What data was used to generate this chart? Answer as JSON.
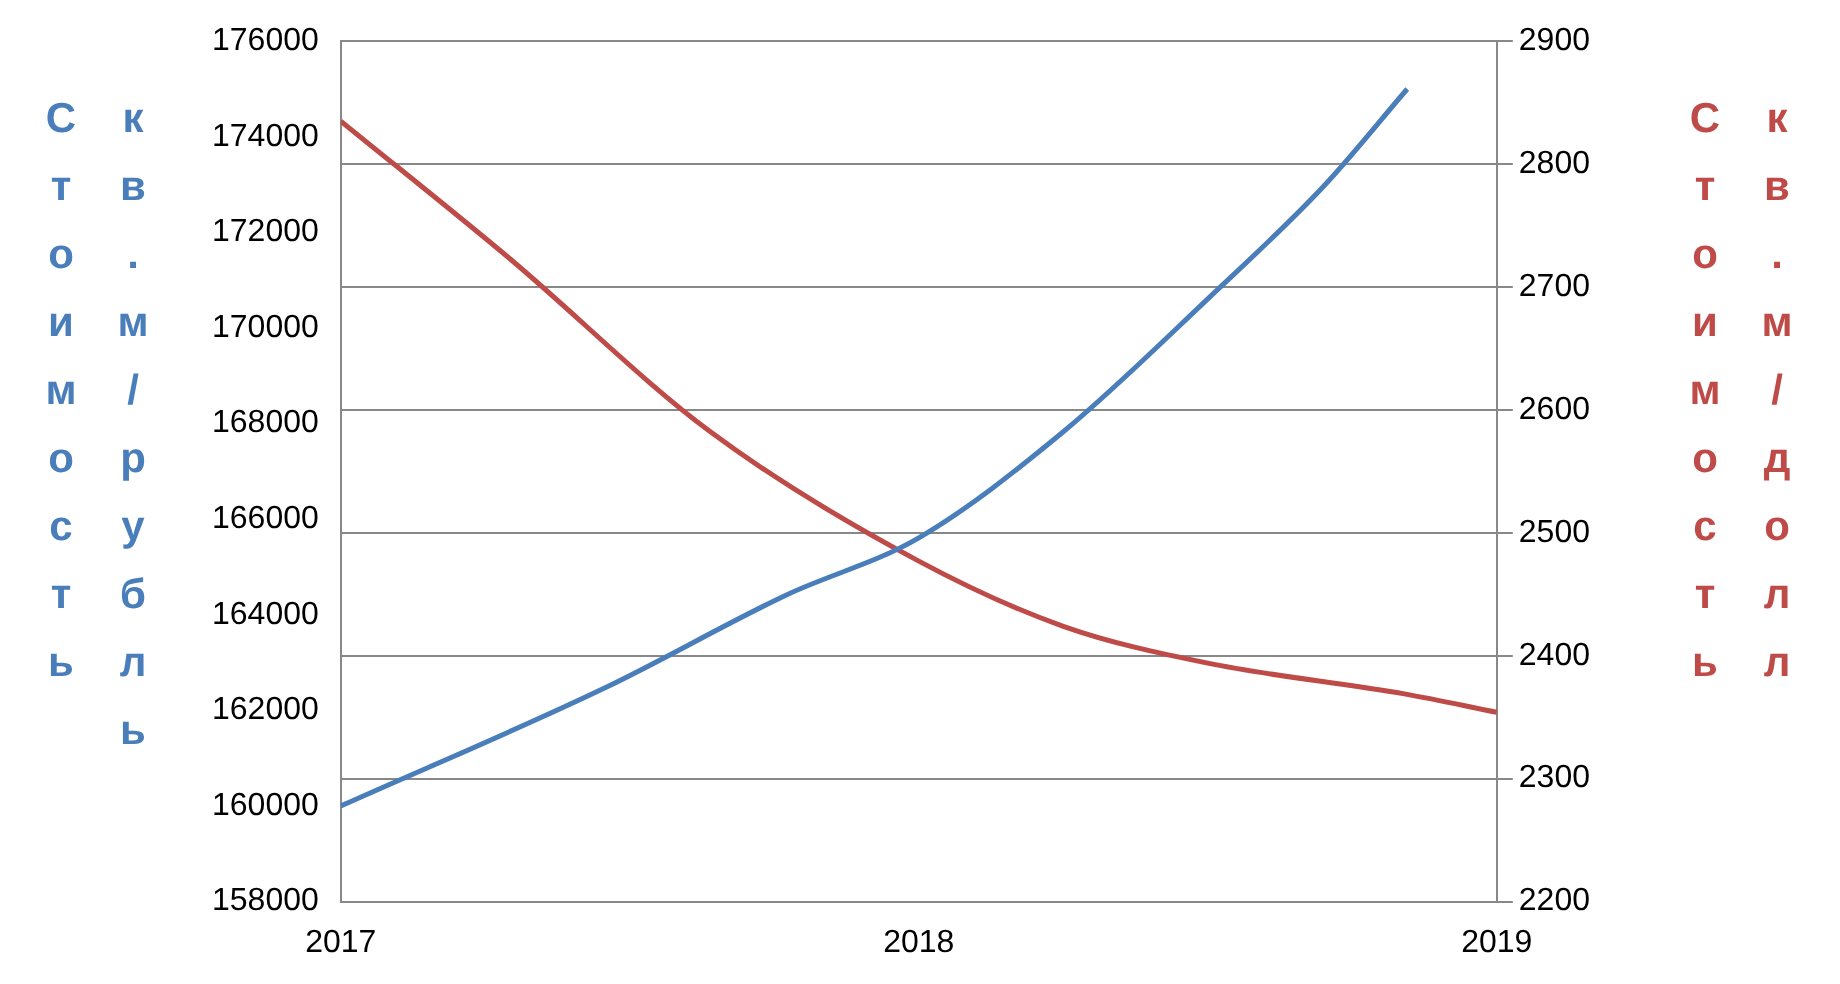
{
  "chart_data": {
    "type": "line",
    "ylabel": "Стоимость кв.м/рубль",
    "y2label": "Стоимость кв.м/долл",
    "xlim": [
      2017,
      2019
    ],
    "xticks": [
      2017,
      2018,
      2019
    ],
    "ylim": [
      158000,
      176000
    ],
    "yticks": [
      158000,
      160000,
      162000,
      164000,
      166000,
      168000,
      170000,
      172000,
      174000,
      176000
    ],
    "y2lim": [
      2200,
      2900
    ],
    "y2ticks": [
      2200,
      2300,
      2400,
      2500,
      2600,
      2700,
      2800,
      2900
    ],
    "grid": true,
    "legend": false,
    "marker": "none",
    "line_style": "solid",
    "series": [
      {
        "color": "#4a7ebb",
        "x": [
          2017,
          2017.46,
          2017.77,
          2018,
          2018.25,
          2018.5,
          2018.7,
          2018.845
        ],
        "values": [
          160000,
          162490,
          164410,
          165610,
          167830,
          170610,
          172960,
          175000
        ]
      },
      {
        "color": "#be4b48",
        "axis": "y2",
        "x": [
          2017,
          2017.29,
          2017.64,
          2018,
          2018.25,
          2018.5,
          2018.84,
          2019
        ],
        "values": [
          2835,
          2724,
          2582,
          2477,
          2424,
          2394,
          2369,
          2354
        ]
      }
    ]
  }
}
